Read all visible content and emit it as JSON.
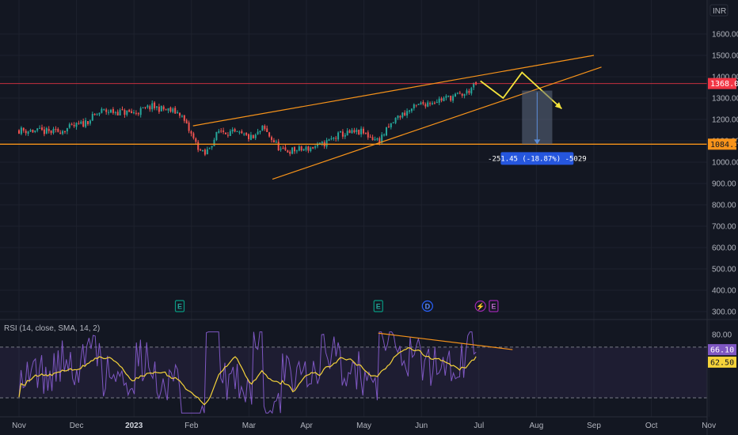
{
  "currency": "INR",
  "colors": {
    "background": "#131722",
    "up": "#26a69a",
    "down": "#ef5350",
    "trendline": "#f7931a",
    "projection": "#f5e43c",
    "measure": "#5b8cd6",
    "rsi_line": "#7e57c2",
    "rsi_ma": "#f5d33a",
    "price_line": "#f23645",
    "support": "#f7931a"
  },
  "chart_data": {
    "type": "candlestick",
    "x_axis": {
      "labels": [
        "Nov",
        "Dec",
        "2023",
        "Feb",
        "Mar",
        "Apr",
        "May",
        "Jun",
        "Jul",
        "Aug",
        "Sep",
        "Oct",
        "Nov"
      ]
    },
    "price_axis": {
      "ticks": [
        "1600.00",
        "1500.00",
        "1400.00",
        "1300.00",
        "1200.00",
        "1100.00",
        "1000.00",
        "900.00",
        "800.00",
        "700.00",
        "600.00",
        "500.00",
        "400.00",
        "300.00"
      ],
      "ylim": [
        300,
        1600
      ]
    },
    "price_path": [
      [
        "2022-11-01",
        1150
      ],
      [
        "2022-11-20",
        1140
      ],
      [
        "2022-12-05",
        1180
      ],
      [
        "2022-12-15",
        1240
      ],
      [
        "2023-01-01",
        1230
      ],
      [
        "2023-01-10",
        1260
      ],
      [
        "2023-01-25",
        1230
      ],
      [
        "2023-02-03",
        1080
      ],
      [
        "2023-02-07",
        1030
      ],
      [
        "2023-02-15",
        1150
      ],
      [
        "2023-02-25",
        1130
      ],
      [
        "2023-03-05",
        1110
      ],
      [
        "2023-03-10",
        1160
      ],
      [
        "2023-03-20",
        1050
      ],
      [
        "2023-04-01",
        1060
      ],
      [
        "2023-04-10",
        1080
      ],
      [
        "2023-04-20",
        1130
      ],
      [
        "2023-05-01",
        1140
      ],
      [
        "2023-05-10",
        1100
      ],
      [
        "2023-05-20",
        1210
      ],
      [
        "2023-06-01",
        1270
      ],
      [
        "2023-06-15",
        1300
      ],
      [
        "2023-06-25",
        1320
      ],
      [
        "2023-07-01",
        1368
      ]
    ],
    "current_price": {
      "label": "1368.00",
      "value": 1368
    },
    "support_line": {
      "label": "1084.15",
      "value": 1084.15
    },
    "trendlines": [
      {
        "from": [
          "2023-02-01",
          1170
        ],
        "to": [
          "2023-09-01",
          1500
        ]
      },
      {
        "from": [
          "2023-03-15",
          920
        ],
        "to": [
          "2023-09-05",
          1445
        ]
      }
    ],
    "projection_path": [
      [
        "2023-07-03",
        1380
      ],
      [
        "2023-07-15",
        1300
      ],
      [
        "2023-07-25",
        1420
      ],
      [
        "2023-08-15",
        1250
      ]
    ],
    "measure": {
      "label": "-251.45 (-18.87%) -5029",
      "from": [
        "2023-07-25",
        1335
      ],
      "to": [
        "2023-08-10",
        1084
      ]
    },
    "events": [
      {
        "date": "2023-01-25",
        "letter": "E",
        "kind": "earnings"
      },
      {
        "date": "2023-05-10",
        "letter": "E",
        "kind": "earnings"
      },
      {
        "date": "2023-06-05",
        "letter": "D",
        "kind": "dividend"
      },
      {
        "date": "2023-07-03",
        "letter": "⚡",
        "kind": "split"
      },
      {
        "date": "2023-07-10",
        "letter": "E",
        "kind": "earnings-upcoming"
      }
    ],
    "rsi": {
      "title": "RSI (14, close, SMA, 14, 2)",
      "ticks": [
        "80.00"
      ],
      "ylim": [
        15,
        88
      ],
      "bands": [
        30,
        70
      ],
      "rsi_label": "66.10",
      "ma_label": "62.50",
      "rsi_value": 66.1,
      "ma_value": 62.5,
      "divergence_line": {
        "from": [
          "2023-05-10",
          81
        ],
        "to": [
          "2023-07-20",
          68
        ]
      }
    }
  }
}
